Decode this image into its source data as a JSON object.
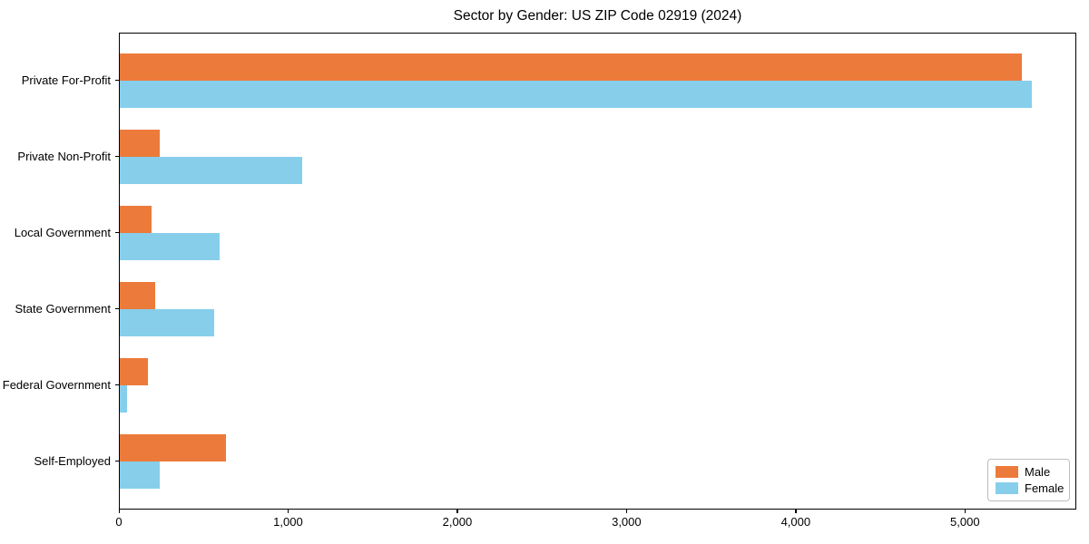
{
  "title": "Sector by Gender: US ZIP Code 02919 (2024)",
  "colors": {
    "male": "#EC7A3B",
    "female": "#87CEEB",
    "axis": "#000000",
    "legend_border": "#bdbdbd",
    "background": "#ffffff"
  },
  "legend": {
    "position": "lower right",
    "items": [
      {
        "label": "Male",
        "color": "#EC7A3B"
      },
      {
        "label": "Female",
        "color": "#87CEEB"
      }
    ]
  },
  "chart_data": {
    "type": "bar",
    "orientation": "horizontal",
    "title": "Sector by Gender: US ZIP Code 02919 (2024)",
    "categories": [
      "Private For-Profit",
      "Private Non-Profit",
      "Local Government",
      "State Government",
      "Federal Government",
      "Self-Employed"
    ],
    "series": [
      {
        "name": "Male",
        "color": "#EC7A3B",
        "values": [
          5330,
          236,
          188,
          211,
          168,
          629
        ]
      },
      {
        "name": "Female",
        "color": "#87CEEB",
        "values": [
          5388,
          1080,
          588,
          556,
          43,
          238
        ]
      }
    ],
    "xlabel": "",
    "ylabel": "",
    "xlim": [
      0,
      5658
    ],
    "xticks": [
      0,
      1000,
      2000,
      3000,
      4000,
      5000
    ],
    "xtick_labels": [
      "0",
      "1,000",
      "2,000",
      "3,000",
      "4,000",
      "5,000"
    ],
    "grid": false,
    "legend_position": "lower right"
  }
}
